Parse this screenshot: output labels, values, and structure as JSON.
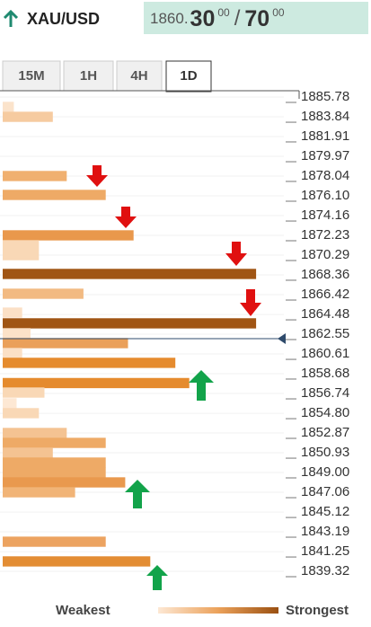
{
  "header": {
    "symbol": "XAU/USD",
    "price_base": "1860.",
    "bid": "30",
    "bid_fraction": "00",
    "separator": "/",
    "ask": "70",
    "ask_fraction": "00"
  },
  "tabs": [
    "15M",
    "1H",
    "4H",
    "1D"
  ],
  "legend": {
    "low": "Weakest",
    "high": "Strongest"
  },
  "chart_data": {
    "type": "confluence",
    "ylim": [
      1839.32,
      1885.78
    ],
    "yticks": [
      1885.78,
      1883.84,
      1881.91,
      1879.97,
      1878.04,
      {
        "value": 1876.1,
        "label": "1876.10"
      },
      1874.16,
      1872.23,
      1870.29,
      1868.36,
      1866.42,
      1864.48,
      1862.55,
      1860.61,
      1858.68,
      1856.74,
      {
        "value": 1854.8,
        "label": "1854.80"
      },
      1852.87,
      1850.93,
      {
        "value": 1849,
        "label": "1849.00"
      },
      1847.06,
      1845.12,
      1843.19,
      1841.25,
      1839.32
    ],
    "xlim": [
      0,
      100
    ],
    "grid": true,
    "y": [
      1884.81,
      1883.84,
      1878.04,
      1876.19,
      1872.23,
      1871.26,
      1870.29,
      1868.45,
      1866.51,
      1864.66,
      1863.61,
      1862.64,
      1861.67,
      1860.7,
      1859.74,
      1857.76,
      1856.83,
      1855.78,
      1854.81,
      1852.87,
      1851.9,
      1850.94,
      1849.97,
      1849.0,
      1848.03,
      1847.06,
      1842.22,
      1840.29
    ],
    "values": [
      4,
      18,
      23,
      37,
      47,
      13,
      13,
      91,
      29,
      7,
      91,
      10,
      45,
      7,
      62,
      67,
      15,
      5,
      13,
      23,
      37,
      18,
      37,
      37,
      44,
      26,
      37,
      53
    ],
    "colors": [
      "#fbe3cb",
      "#f6cba0",
      "#f0b070",
      "#eeaa66",
      "#e9984c",
      "#f9d8b6",
      "#f9d8b6",
      "#a05514",
      "#f2ba82",
      "#fbe0c6",
      "#a05514",
      "#fce2c8",
      "#eaa05a",
      "#fbe0c6",
      "#e58b2e",
      "#e58b2e",
      "#f9d8b6",
      "#fde8d4",
      "#f9d8b6",
      "#f4c392",
      "#eeaa66",
      "#f4c392",
      "#eeaa66",
      "#eeaa66",
      "#e9994e",
      "#f1b477",
      "#eca360",
      "#e38d34"
    ]
  }
}
